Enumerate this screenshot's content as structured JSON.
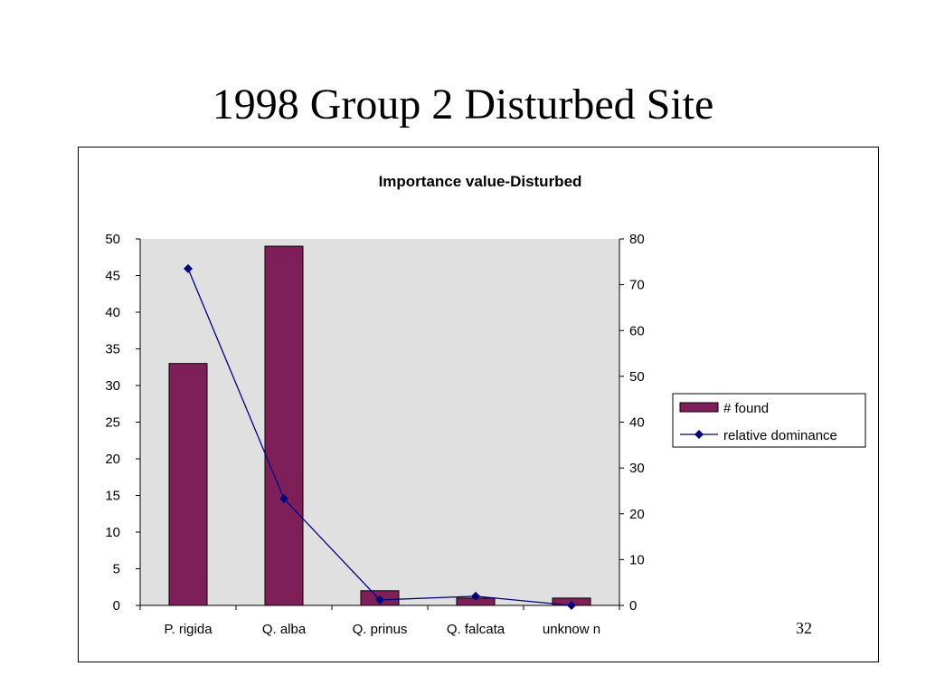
{
  "slide": {
    "title": "1998 Group 2 Disturbed Site",
    "page_number": "32"
  },
  "chart_data": {
    "type": "bar",
    "title": "Importance value-Disturbed",
    "categories": [
      "P. rigida",
      "Q. alba",
      "Q. prinus",
      "Q. falcata",
      "unknow n"
    ],
    "series": [
      {
        "name": "# found",
        "type": "bar",
        "axis": "left",
        "color": "#7f1f5a",
        "values": [
          33,
          49,
          2,
          1,
          1
        ]
      },
      {
        "name": "relative dominance",
        "type": "line",
        "axis": "right",
        "color": "#000080",
        "marker": "diamond",
        "values": [
          73.5,
          23.3,
          1.2,
          2.0,
          0.0
        ]
      }
    ],
    "y_left": {
      "min": 0,
      "max": 50,
      "step": 5,
      "ticks": [
        "0",
        "5",
        "10",
        "15",
        "20",
        "25",
        "30",
        "35",
        "40",
        "45",
        "50"
      ]
    },
    "y_right": {
      "min": 0,
      "max": 80,
      "step": 10,
      "ticks": [
        "0",
        "10",
        "20",
        "30",
        "40",
        "50",
        "60",
        "70",
        "80"
      ]
    },
    "plot_background": "#e0e0e0",
    "grid": false,
    "legend": "right"
  }
}
